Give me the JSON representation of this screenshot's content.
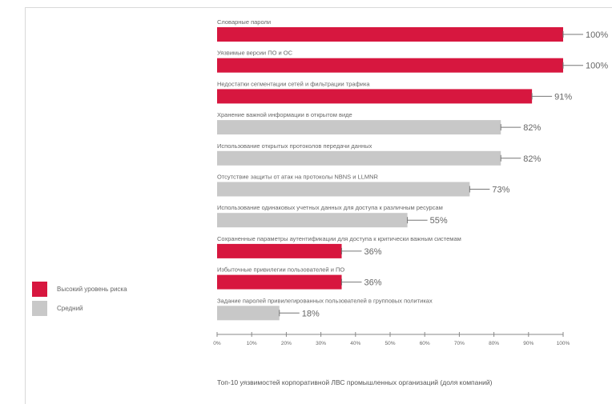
{
  "colors": {
    "high": "#d7173f",
    "medium": "#c8c8c8",
    "axis": "#888888",
    "label": "#666666"
  },
  "legend": [
    {
      "label": "Высокий уровень риска",
      "color": "#d7173f"
    },
    {
      "label": "Средний",
      "color": "#c8c8c8"
    }
  ],
  "chart_data": {
    "type": "bar",
    "orientation": "horizontal",
    "title": "Топ-10 уязвимостей корпоративной ЛВС промышленных организаций (доля компаний)",
    "categories": [
      "Словарные пароли",
      "Уязвимые версии ПО и ОС",
      "Недостатки сегментации сетей и фильтрации трафика",
      "Хранение важной информации в открытом виде",
      "Использование открытых протоколов передачи данных",
      "Отсутствие защиты от атак на протоколы NBNS и LLMNR",
      "Использование одинаковых учетных данных для доступа к различным ресурсам",
      "Сохраненные параметры аутентификации для доступа к критически важным системам",
      "Избыточные привилегии пользователей и ПО",
      "Задание паролей привилегированных пользователей в групповых политиках"
    ],
    "values": [
      100,
      100,
      91,
      82,
      82,
      73,
      55,
      36,
      36,
      18
    ],
    "value_labels": [
      "100%",
      "100%",
      "91%",
      "82%",
      "82%",
      "73%",
      "55%",
      "36%",
      "36%",
      "18%"
    ],
    "risk": [
      "high",
      "high",
      "high",
      "medium",
      "medium",
      "medium",
      "medium",
      "high",
      "high",
      "medium"
    ],
    "xlim": [
      0,
      100
    ],
    "x_ticks": [
      "0%",
      "10%",
      "20%",
      "30%",
      "40%",
      "50%",
      "60%",
      "70%",
      "80%",
      "90%",
      "100%"
    ],
    "grid": false,
    "legend_position": "left"
  }
}
